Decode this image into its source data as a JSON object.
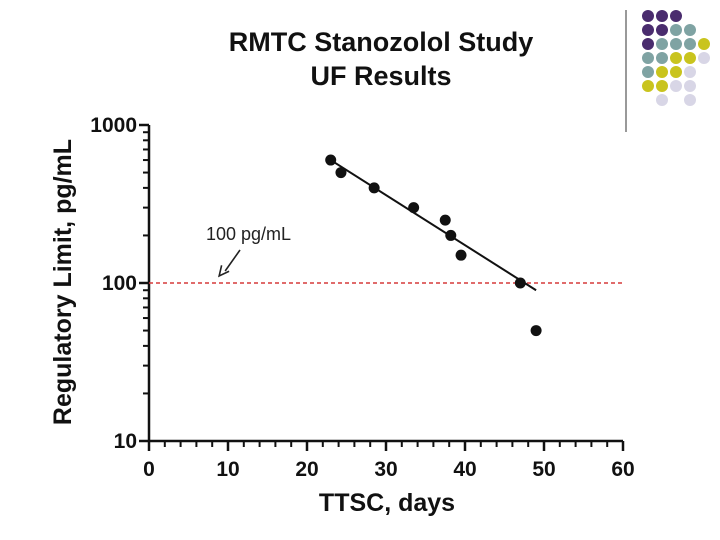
{
  "colors": {
    "purple": "#4a2c6e",
    "teal": "#7fa3a3",
    "yellow": "#c9c41e",
    "lavender": "#d8d6e6",
    "reference_line": "#d63a3a",
    "ink": "#111111"
  },
  "decoration": {
    "dot_grid": [
      [
        "purple",
        "purple",
        "purple",
        "empty",
        "empty"
      ],
      [
        "purple",
        "purple",
        "teal",
        "teal",
        "empty"
      ],
      [
        "purple",
        "teal",
        "teal",
        "teal",
        "yellow"
      ],
      [
        "teal",
        "teal",
        "yellow",
        "yellow",
        "lavender"
      ],
      [
        "teal",
        "yellow",
        "yellow",
        "lavender",
        "empty"
      ],
      [
        "yellow",
        "yellow",
        "lavender",
        "lavender",
        "empty"
      ],
      [
        "empty",
        "lavender",
        "empty",
        "lavender",
        "empty"
      ]
    ]
  },
  "chart_data": {
    "type": "scatter",
    "title": [
      "RMTC Stanozolol Study",
      "UF Results"
    ],
    "xlabel": "TTSC, days",
    "ylabel": "Regulatory Limit, pg/mL",
    "x_scale": "linear",
    "y_scale": "log",
    "xlim": [
      0,
      60
    ],
    "ylim": [
      10,
      1000
    ],
    "x_ticks": [
      0,
      10,
      20,
      30,
      40,
      50,
      60
    ],
    "x_tick_labels": [
      "0",
      "10",
      "20",
      "30",
      "40",
      "50",
      "60"
    ],
    "y_ticks": [
      10,
      100,
      1000
    ],
    "y_tick_labels": [
      "10",
      "100",
      "1000"
    ],
    "grid": false,
    "series": [
      {
        "name": "UF Results",
        "x": [
          23,
          24.3,
          28.5,
          33.5,
          37.5,
          38.2,
          39.5,
          47,
          49
        ],
        "y": [
          600,
          500,
          400,
          300,
          250,
          200,
          150,
          100,
          50
        ]
      }
    ],
    "fit_line": {
      "x": [
        23,
        49
      ],
      "y": [
        600,
        90
      ]
    },
    "reference_line": {
      "y": 100,
      "style": "dashed"
    },
    "annotation": {
      "text": "100 pg/mL",
      "arrow_target": {
        "x": 8.5,
        "y": 100
      }
    }
  }
}
